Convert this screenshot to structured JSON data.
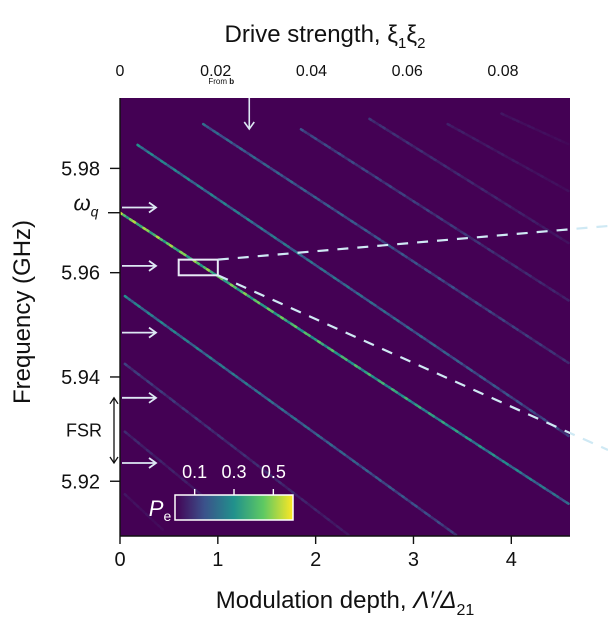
{
  "chart_data": {
    "type": "heatmap",
    "top_axis": {
      "label_text": "Drive strength, ",
      "label_symbol": "ξ",
      "label_sub1": "1",
      "label_symbol2": "ξ",
      "label_sub2": "2",
      "ticks": [
        {
          "value": 0,
          "label": "0"
        },
        {
          "value": 0.02,
          "label": "0.02"
        },
        {
          "value": 0.04,
          "label": "0.04"
        },
        {
          "value": 0.06,
          "label": "0.06"
        },
        {
          "value": 0.08,
          "label": "0.08"
        }
      ],
      "range": [
        0,
        0.094
      ],
      "from_annotation": {
        "text": "From ",
        "bold": "b",
        "value": 0.027
      }
    },
    "x_axis": {
      "label_text": "Modulation depth, ",
      "label_math": "Λ′/Δ",
      "label_sub": "21",
      "ticks": [
        {
          "value": 0,
          "label": "0"
        },
        {
          "value": 1,
          "label": "1"
        },
        {
          "value": 2,
          "label": "2"
        },
        {
          "value": 3,
          "label": "3"
        },
        {
          "value": 4,
          "label": "4"
        }
      ],
      "range": [
        0,
        4.6
      ]
    },
    "y_axis": {
      "label": "Frequency (GHz)",
      "unit": "GHz",
      "ticks": [
        {
          "value": 5.92,
          "label": "5.92"
        },
        {
          "value": 5.94,
          "label": "5.94"
        },
        {
          "value": 5.96,
          "label": "5.96"
        },
        {
          "value": 5.98,
          "label": "5.98"
        }
      ],
      "range": [
        5.9095,
        5.9935
      ]
    },
    "omega_q": {
      "symbol": "ω",
      "sub": "q",
      "value": 5.9715
    },
    "fsr": {
      "label": "FSR",
      "from": 5.9235,
      "to": 5.936
    },
    "arrows_y": [
      5.9725,
      5.9613,
      5.9485,
      5.936,
      5.9235
    ],
    "inset_box": {
      "x0": 0.6,
      "x1": 1.0,
      "y0": 5.9595,
      "y1": 5.9625
    },
    "colorbar": {
      "symbol": "P",
      "sub": "e",
      "ticks": [
        {
          "value": 0.1,
          "label": "0.1"
        },
        {
          "value": 0.3,
          "label": "0.3"
        },
        {
          "value": 0.5,
          "label": "0.5"
        }
      ],
      "range": [
        0,
        0.6
      ],
      "colors": [
        "#440154",
        "#3b528b",
        "#21918c",
        "#5ec962",
        "#fde725"
      ]
    },
    "background_color": "#440154",
    "series": [
      {
        "start": [
          0.0,
          5.9715
        ],
        "end": [
          4.6,
          5.9155
        ],
        "peak": 0.55
      },
      {
        "start": [
          0.18,
          5.9845
        ],
        "end": [
          4.6,
          5.9285
        ],
        "peak": 0.3
      },
      {
        "start": [
          0.85,
          5.9885
        ],
        "end": [
          4.6,
          5.9425
        ],
        "peak": 0.22
      },
      {
        "start": [
          1.85,
          5.9875
        ],
        "end": [
          4.6,
          5.9545
        ],
        "peak": 0.15
      },
      {
        "start": [
          2.55,
          5.9895
        ],
        "end": [
          4.6,
          5.9655
        ],
        "peak": 0.1
      },
      {
        "start": [
          3.35,
          5.9885
        ],
        "end": [
          4.6,
          5.9755
        ],
        "peak": 0.06
      },
      {
        "start": [
          3.9,
          5.9905
        ],
        "end": [
          4.6,
          5.9845
        ],
        "peak": 0.04
      },
      {
        "start": [
          0.05,
          5.9555
        ],
        "end": [
          3.45,
          5.9095
        ],
        "peak": 0.3
      },
      {
        "start": [
          0.05,
          5.9425
        ],
        "end": [
          2.35,
          5.9095
        ],
        "peak": 0.12
      },
      {
        "start": [
          0.05,
          5.9295
        ],
        "end": [
          1.15,
          5.9125
        ],
        "peak": 0.08
      },
      {
        "start": [
          0.05,
          5.9175
        ],
        "end": [
          0.45,
          5.9105
        ],
        "peak": 0.04
      }
    ]
  }
}
